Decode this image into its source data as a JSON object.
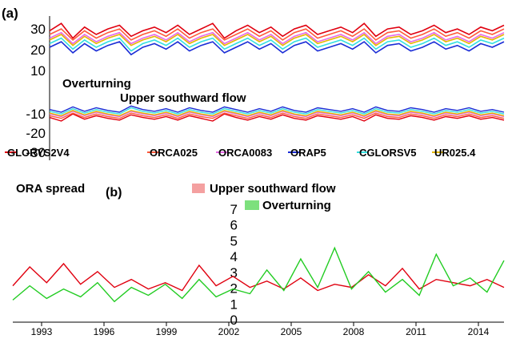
{
  "chart_data": [
    {
      "panel": "(a)",
      "type": "line",
      "ylim": [
        -30,
        30
      ],
      "yticks": [
        "30",
        "20",
        "10",
        "-10",
        "-20",
        "-30"
      ],
      "annotations": [
        "Overturning",
        "Upper southward flow"
      ],
      "legend": "bottom",
      "series": [
        {
          "name": "GLORYS2V4",
          "color": "#e0000f",
          "values": [
            24,
            28,
            20,
            26,
            22,
            25,
            27,
            21,
            24,
            26,
            23,
            27,
            22,
            25,
            28,
            20,
            24,
            27,
            23,
            26,
            21,
            25,
            27,
            22,
            24,
            26,
            23,
            28,
            21,
            25,
            26,
            22,
            24,
            27,
            23,
            25,
            22,
            26,
            24,
            27
          ]
        },
        {
          "name": "ORCA025",
          "color": "#ff5a3c",
          "values": [
            22,
            25,
            19,
            24,
            20,
            23,
            25,
            19,
            22,
            24,
            21,
            25,
            20,
            23,
            25,
            19,
            22,
            25,
            21,
            24,
            19,
            23,
            25,
            20,
            22,
            24,
            21,
            25,
            19,
            23,
            24,
            20,
            22,
            25,
            21,
            23,
            20,
            24,
            22,
            25
          ]
        },
        {
          "name": "ORCA0083",
          "color": "#e86ae8",
          "values": [
            20,
            23,
            17,
            22,
            18,
            21,
            23,
            17,
            20,
            22,
            19,
            23,
            18,
            21,
            23,
            17,
            20,
            23,
            19,
            22,
            17,
            21,
            23,
            18,
            20,
            22,
            19,
            23,
            17,
            21,
            22,
            18,
            20,
            23,
            19,
            21,
            18,
            22,
            20,
            23
          ]
        },
        {
          "name": "ORAP5",
          "color": "#1a2cd6",
          "values": [
            15,
            18,
            12,
            17,
            13,
            16,
            18,
            11,
            15,
            17,
            14,
            18,
            13,
            16,
            18,
            12,
            15,
            18,
            14,
            17,
            12,
            16,
            18,
            13,
            15,
            17,
            14,
            18,
            12,
            16,
            17,
            13,
            15,
            18,
            14,
            16,
            13,
            17,
            15,
            18
          ]
        },
        {
          "name": "CGLORSV5",
          "color": "#35e0e0",
          "values": [
            17,
            20,
            14,
            19,
            15,
            18,
            20,
            13,
            17,
            19,
            16,
            20,
            15,
            18,
            20,
            14,
            17,
            20,
            16,
            19,
            14,
            18,
            20,
            15,
            17,
            19,
            16,
            20,
            14,
            18,
            19,
            15,
            17,
            20,
            16,
            18,
            15,
            19,
            17,
            20
          ]
        },
        {
          "name": "UR025.4",
          "color": "#e6b800",
          "values": [
            19,
            22,
            16,
            21,
            17,
            20,
            22,
            16,
            19,
            21,
            18,
            22,
            17,
            20,
            22,
            16,
            19,
            22,
            18,
            21,
            16,
            20,
            22,
            17,
            19,
            21,
            18,
            22,
            16,
            20,
            21,
            17,
            19,
            22,
            18,
            20,
            17,
            21,
            19,
            22
          ]
        }
      ]
    },
    {
      "panel": "(b)",
      "type": "line",
      "ylim": [
        0,
        7
      ],
      "yticks": [
        "7",
        "6",
        "5",
        "4",
        "3",
        "2",
        "1",
        "0"
      ],
      "annotations": [
        "ORA spread",
        "Upper southward flow",
        "Overturning"
      ],
      "xticks": [
        "1993",
        "1996",
        "1999",
        "2002",
        "2005",
        "2008",
        "2011",
        "2014"
      ],
      "series": [
        {
          "name": "Upper southward flow",
          "color": "#e0000f",
          "values": [
            2.2,
            3.4,
            2.4,
            3.6,
            2.3,
            3.1,
            2.1,
            2.6,
            2.0,
            2.4,
            1.9,
            3.5,
            2.2,
            2.8,
            2.1,
            2.5,
            2.0,
            2.7,
            1.9,
            2.3,
            2.1,
            2.9,
            2.2,
            3.3,
            2.0,
            2.6,
            2.4,
            2.2,
            2.6,
            2.1
          ]
        },
        {
          "name": "Overturning",
          "color": "#22cc22",
          "values": [
            1.3,
            2.2,
            1.4,
            2.0,
            1.5,
            2.4,
            1.2,
            2.1,
            1.6,
            2.3,
            1.4,
            2.6,
            1.5,
            2.0,
            1.7,
            3.2,
            1.9,
            3.9,
            2.1,
            4.6,
            2.0,
            3.1,
            1.8,
            2.6,
            1.6,
            4.2,
            2.2,
            2.7,
            1.8,
            3.8
          ]
        }
      ]
    }
  ]
}
